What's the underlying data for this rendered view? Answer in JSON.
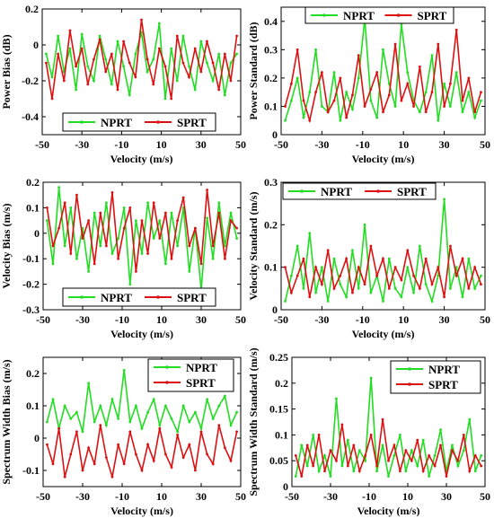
{
  "chart_data": [
    {
      "type": "line",
      "title": "",
      "xlabel": "Velocity (m/s)",
      "ylabel": "Power Bias (dB)",
      "xlim": [
        -50,
        50
      ],
      "ylim": [
        -0.5,
        0.2
      ],
      "xticks": [
        "-50",
        "-30",
        "-10",
        "10",
        "30",
        "50"
      ],
      "yticks": [
        "0.2",
        "0",
        "-0.2",
        "-0.4"
      ],
      "legend": {
        "placement": "bottom-center",
        "orientation": "horizontal"
      },
      "x": [
        -48,
        -45,
        -42,
        -39,
        -36,
        -33,
        -30,
        -27,
        -24,
        -21,
        -18,
        -15,
        -12,
        -9,
        -6,
        -3,
        0,
        3,
        6,
        9,
        12,
        15,
        18,
        21,
        24,
        27,
        30,
        33,
        36,
        39,
        42,
        45,
        48
      ],
      "series": [
        {
          "name": "NPRT",
          "color": "#22dd22",
          "values": [
            -0.05,
            -0.18,
            0.05,
            -0.15,
            -0.02,
            -0.25,
            0.06,
            -0.12,
            -0.2,
            0.05,
            -0.08,
            -0.22,
            0.02,
            -0.12,
            -0.28,
            -0.05,
            0.07,
            -0.15,
            -0.08,
            0.12,
            -0.3,
            -0.02,
            -0.2,
            0.05,
            -0.12,
            -0.25,
            0.02,
            -0.1,
            -0.2,
            -0.05,
            -0.28,
            -0.1,
            -0.05
          ]
        },
        {
          "name": "SPRT",
          "color": "#dd1111",
          "values": [
            -0.1,
            -0.3,
            -0.05,
            -0.2,
            0.08,
            -0.12,
            -0.02,
            -0.22,
            -0.08,
            0.03,
            -0.15,
            -0.05,
            -0.25,
            0.02,
            -0.1,
            -0.18,
            0.14,
            -0.08,
            -0.22,
            -0.02,
            -0.12,
            -0.3,
            0.05,
            -0.1,
            -0.18,
            -0.02,
            -0.15,
            0.02,
            -0.1,
            -0.25,
            -0.05,
            -0.2,
            0.05
          ]
        }
      ]
    },
    {
      "type": "line",
      "title": "",
      "xlabel": "Velocity (m/s)",
      "ylabel": "Power Standard (dB)",
      "xlim": [
        -50,
        50
      ],
      "ylim": [
        0,
        0.45
      ],
      "xticks": [
        "-50",
        "-30",
        "-10",
        "10",
        "30",
        "50"
      ],
      "yticks": [
        "0.4",
        "0.3",
        "0.2",
        "0.1",
        "0"
      ],
      "legend": {
        "placement": "top-center",
        "orientation": "horizontal"
      },
      "x": [
        -48,
        -45,
        -42,
        -39,
        -36,
        -33,
        -30,
        -27,
        -24,
        -21,
        -18,
        -15,
        -12,
        -9,
        -6,
        -3,
        0,
        3,
        6,
        9,
        12,
        15,
        18,
        21,
        24,
        27,
        30,
        33,
        36,
        39,
        42,
        45,
        48
      ],
      "series": [
        {
          "name": "NPRT",
          "color": "#22dd22",
          "values": [
            0.05,
            0.12,
            0.2,
            0.06,
            0.15,
            0.3,
            0.1,
            0.08,
            0.22,
            0.05,
            0.15,
            0.09,
            0.2,
            0.41,
            0.12,
            0.06,
            0.3,
            0.18,
            0.1,
            0.39,
            0.22,
            0.12,
            0.08,
            0.15,
            0.28,
            0.05,
            0.18,
            0.1,
            0.22,
            0.08,
            0.15,
            0.06,
            0.12
          ]
        },
        {
          "name": "SPRT",
          "color": "#dd1111",
          "values": [
            0.1,
            0.18,
            0.3,
            0.12,
            0.05,
            0.15,
            0.22,
            0.08,
            0.12,
            0.2,
            0.06,
            0.14,
            0.28,
            0.1,
            0.16,
            0.22,
            0.08,
            0.14,
            0.32,
            0.12,
            0.18,
            0.1,
            0.24,
            0.08,
            0.15,
            0.32,
            0.1,
            0.18,
            0.37,
            0.12,
            0.2,
            0.08,
            0.15
          ]
        }
      ]
    },
    {
      "type": "line",
      "title": "",
      "xlabel": "Velocity (m/s)",
      "ylabel": "Velocity Bias (m/s)",
      "xlim": [
        -50,
        50
      ],
      "ylim": [
        -0.3,
        0.2
      ],
      "xticks": [
        "-50",
        "-30",
        "-10",
        "10",
        "30",
        "50"
      ],
      "yticks": [
        "0.2",
        "0.1",
        "0",
        "-0.1",
        "-0.2",
        "-0.3"
      ],
      "legend": {
        "placement": "bottom-center",
        "orientation": "horizontal"
      },
      "x": [
        -48,
        -45,
        -42,
        -39,
        -36,
        -33,
        -30,
        -27,
        -24,
        -21,
        -18,
        -15,
        -12,
        -9,
        -6,
        -3,
        0,
        3,
        6,
        9,
        12,
        15,
        18,
        21,
        24,
        27,
        30,
        33,
        36,
        39,
        42,
        45,
        48
      ],
      "series": [
        {
          "name": "NPRT",
          "color": "#22dd22",
          "values": [
            0.05,
            -0.12,
            0.18,
            -0.05,
            0.1,
            -0.1,
            0.02,
            -0.15,
            0.08,
            -0.05,
            0.12,
            -0.08,
            -0.02,
            0.1,
            -0.2,
            0.05,
            -0.08,
            0.12,
            -0.02,
            0.05,
            -0.12,
            0.08,
            -0.05,
            0.1,
            -0.15,
            0.02,
            -0.22,
            0.06,
            -0.1,
            0.12,
            -0.05,
            0.08,
            -0.02
          ]
        },
        {
          "name": "SPRT",
          "color": "#dd1111",
          "values": [
            0.1,
            -0.05,
            0.02,
            0.12,
            -0.08,
            0.15,
            -0.02,
            0.05,
            -0.12,
            0.08,
            -0.05,
            0.16,
            -0.1,
            0.02,
            0.1,
            -0.15,
            0.05,
            -0.08,
            0.12,
            -0.02,
            0.08,
            -0.1,
            0.05,
            0.14,
            -0.05,
            0.02,
            -0.12,
            0.17,
            -0.05,
            0.08,
            -0.1,
            0.05,
            0.02
          ]
        }
      ]
    },
    {
      "type": "line",
      "title": "",
      "xlabel": "Velocity (m/s)",
      "ylabel": "Velocity Standard (m/s)",
      "xlim": [
        -50,
        50
      ],
      "ylim": [
        0,
        0.3
      ],
      "xticks": [
        "-50",
        "-30",
        "-10",
        "10",
        "30",
        "50"
      ],
      "yticks": [
        "0.3",
        "0.2",
        "0.1",
        "0"
      ],
      "legend": {
        "placement": "top-center",
        "orientation": "horizontal"
      },
      "x": [
        -48,
        -45,
        -42,
        -39,
        -36,
        -33,
        -30,
        -27,
        -24,
        -21,
        -18,
        -15,
        -12,
        -9,
        -6,
        -3,
        0,
        3,
        6,
        9,
        12,
        15,
        18,
        21,
        24,
        27,
        30,
        33,
        36,
        39,
        42,
        45,
        48
      ],
      "series": [
        {
          "name": "NPRT",
          "color": "#22dd22",
          "values": [
            0.02,
            0.08,
            0.15,
            0.05,
            0.18,
            0.04,
            0.1,
            0.02,
            0.12,
            0.06,
            0.03,
            0.14,
            0.05,
            0.2,
            0.04,
            0.08,
            0.02,
            0.12,
            0.05,
            0.03,
            0.1,
            0.04,
            0.15,
            0.06,
            0.02,
            0.08,
            0.26,
            0.05,
            0.1,
            0.03,
            0.12,
            0.05,
            0.08
          ]
        },
        {
          "name": "SPRT",
          "color": "#dd1111",
          "values": [
            0.1,
            0.04,
            0.08,
            0.12,
            0.03,
            0.1,
            0.06,
            0.14,
            0.05,
            0.08,
            0.12,
            0.04,
            0.1,
            0.06,
            0.15,
            0.08,
            0.12,
            0.05,
            0.1,
            0.07,
            0.14,
            0.08,
            0.05,
            0.12,
            0.06,
            0.1,
            0.03,
            0.15,
            0.08,
            0.12,
            0.05,
            0.1,
            0.06
          ]
        }
      ]
    },
    {
      "type": "line",
      "title": "",
      "xlabel": "Velocity (m/s)",
      "ylabel": "Spectrum Width Bias (m/s)",
      "xlim": [
        -50,
        50
      ],
      "ylim": [
        -0.15,
        0.25
      ],
      "xticks": [
        "-50",
        "-30",
        "-10",
        "10",
        "30",
        "50"
      ],
      "yticks": [
        "0.2",
        "0.1",
        "0",
        "-0.1"
      ],
      "legend": {
        "placement": "top-right",
        "orientation": "vertical"
      },
      "x": [
        -48,
        -45,
        -42,
        -39,
        -36,
        -33,
        -30,
        -27,
        -24,
        -21,
        -18,
        -15,
        -12,
        -9,
        -6,
        -3,
        0,
        3,
        6,
        9,
        12,
        15,
        18,
        21,
        24,
        27,
        30,
        33,
        36,
        39,
        42,
        45,
        48
      ],
      "series": [
        {
          "name": "NPRT",
          "color": "#22dd22",
          "values": [
            0.05,
            0.12,
            0.03,
            0.1,
            0.06,
            0.08,
            0.02,
            0.17,
            0.05,
            0.1,
            0.04,
            0.12,
            0.06,
            0.21,
            0.05,
            0.1,
            0.03,
            0.08,
            0.12,
            0.04,
            0.1,
            0.06,
            0.02,
            0.1,
            0.05,
            0.08,
            0.03,
            0.12,
            0.06,
            0.1,
            0.13,
            0.04,
            0.08
          ]
        },
        {
          "name": "SPRT",
          "color": "#dd1111",
          "values": [
            -0.02,
            -0.08,
            0.03,
            -0.12,
            -0.05,
            0.02,
            -0.1,
            -0.03,
            -0.08,
            0.04,
            -0.06,
            -0.12,
            -0.02,
            -0.08,
            0.02,
            -0.05,
            -0.1,
            -0.02,
            -0.07,
            0.03,
            -0.05,
            -0.09,
            0.01,
            -0.06,
            -0.02,
            -0.1,
            0.02,
            -0.05,
            -0.08,
            0.04,
            -0.03,
            -0.07,
            0.02
          ]
        }
      ]
    },
    {
      "type": "line",
      "title": "",
      "xlabel": "Velocity (m/s)",
      "ylabel": "Spectrum Width Standard (m/s)",
      "xlim": [
        -50,
        50
      ],
      "ylim": [
        0,
        0.25
      ],
      "xticks": [
        "-50",
        "-30",
        "-10",
        "10",
        "30",
        "50"
      ],
      "yticks": [
        "0.25",
        "0.2",
        "0.15",
        "0.1",
        "0.05",
        "0"
      ],
      "legend": {
        "placement": "top-right",
        "orientation": "vertical"
      },
      "x": [
        -48,
        -45,
        -42,
        -39,
        -36,
        -33,
        -30,
        -27,
        -24,
        -21,
        -18,
        -15,
        -12,
        -9,
        -6,
        -3,
        0,
        3,
        6,
        9,
        12,
        15,
        18,
        21,
        24,
        27,
        30,
        33,
        36,
        39,
        42,
        45,
        48
      ],
      "series": [
        {
          "name": "NPRT",
          "color": "#22dd22",
          "values": [
            0.02,
            0.08,
            0.04,
            0.1,
            0.03,
            0.06,
            0.02,
            0.17,
            0.04,
            0.09,
            0.03,
            0.07,
            0.05,
            0.21,
            0.03,
            0.08,
            0.02,
            0.06,
            0.1,
            0.03,
            0.07,
            0.04,
            0.09,
            0.02,
            0.06,
            0.11,
            0.03,
            0.08,
            0.04,
            0.07,
            0.13,
            0.03,
            0.06
          ]
        },
        {
          "name": "SPRT",
          "color": "#dd1111",
          "values": [
            0.06,
            0.02,
            0.08,
            0.04,
            0.1,
            0.03,
            0.07,
            0.05,
            0.12,
            0.04,
            0.08,
            0.03,
            0.06,
            0.1,
            0.04,
            0.13,
            0.05,
            0.08,
            0.03,
            0.07,
            0.05,
            0.09,
            0.03,
            0.06,
            0.04,
            0.08,
            0.02,
            0.07,
            0.05,
            0.1,
            0.03,
            0.06,
            0.04
          ]
        }
      ]
    }
  ]
}
